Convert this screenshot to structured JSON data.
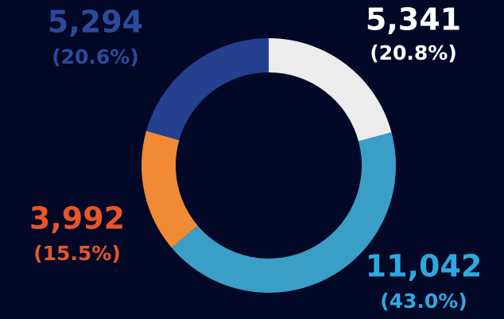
{
  "chart_data": {
    "type": "donut",
    "values": [
      5341,
      11042,
      3992,
      5294
    ],
    "value_labels": [
      "5,341",
      "11,042",
      "3,992",
      "5,294"
    ],
    "percents": [
      20.8,
      43.0,
      15.5,
      20.6
    ],
    "percent_labels": [
      "(20.8%)",
      "(43.0%)",
      "(15.5%)",
      "(20.6%)"
    ],
    "colors": [
      "#ececec",
      "#3b9ec6",
      "#f08a35",
      "#24408e"
    ],
    "label_colors": [
      "#ffffff",
      "#2fa8e0",
      "#e8552b",
      "#2d4a9a"
    ]
  }
}
